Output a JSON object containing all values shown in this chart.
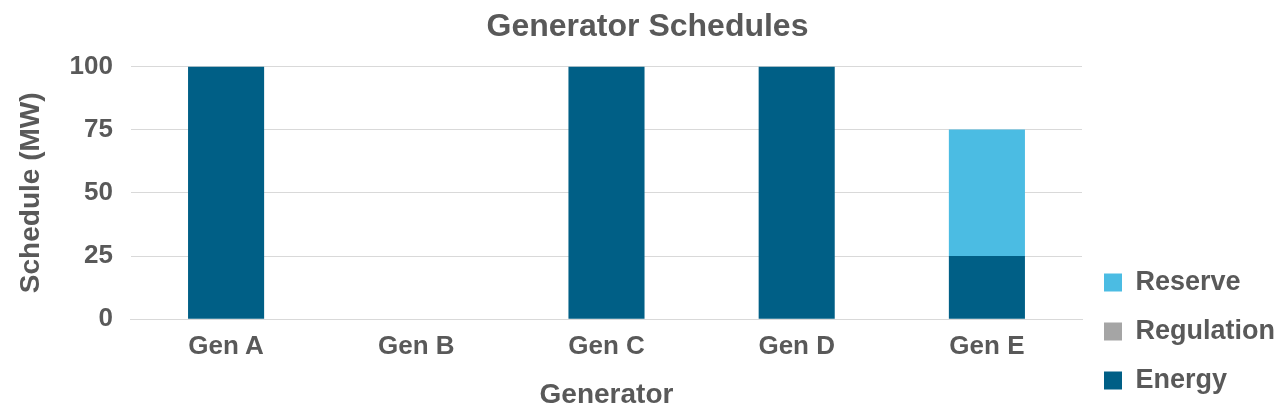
{
  "chart_data": {
    "type": "bar",
    "title": "Generator Schedules",
    "xlabel": "Generator",
    "ylabel": "Schedule (MW)",
    "categories": [
      "Gen A",
      "Gen B",
      "Gen C",
      "Gen D",
      "Gen E"
    ],
    "series": [
      {
        "name": "Energy",
        "color": "#005f86",
        "values": [
          100,
          0,
          100,
          100,
          25
        ]
      },
      {
        "name": "Regulation",
        "color": "#a5a5a5",
        "values": [
          0,
          0,
          0,
          0,
          0
        ]
      },
      {
        "name": "Reserve",
        "color": "#4bbce3",
        "values": [
          0,
          0,
          0,
          0,
          50
        ]
      }
    ],
    "stacked": true,
    "ylim": [
      0,
      100
    ],
    "yticks": [
      0,
      25,
      50,
      75,
      100
    ],
    "grid": "y",
    "legend": "right"
  }
}
